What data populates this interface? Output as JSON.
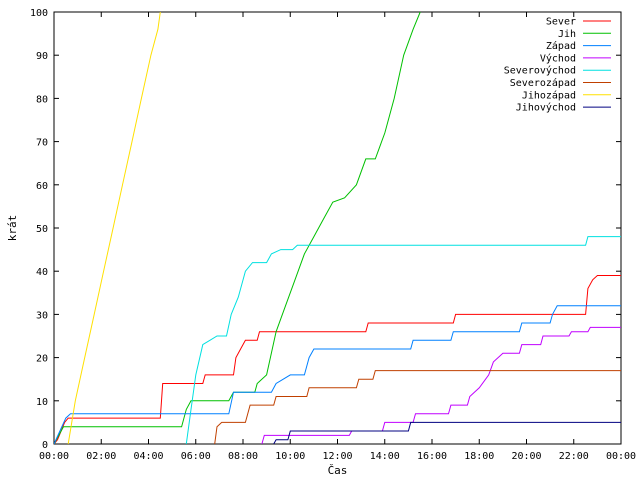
{
  "chart_data": {
    "type": "line",
    "xlabel": "Čas",
    "ylabel": "krát",
    "xlim": [
      0,
      24
    ],
    "ylim": [
      0,
      100
    ],
    "x_ticks": [
      {
        "value": 0,
        "label": "00:00"
      },
      {
        "value": 2,
        "label": "02:00"
      },
      {
        "value": 4,
        "label": "04:00"
      },
      {
        "value": 6,
        "label": "06:00"
      },
      {
        "value": 8,
        "label": "08:00"
      },
      {
        "value": 10,
        "label": "10:00"
      },
      {
        "value": 12,
        "label": "12:00"
      },
      {
        "value": 14,
        "label": "14:00"
      },
      {
        "value": 16,
        "label": "16:00"
      },
      {
        "value": 18,
        "label": "18:00"
      },
      {
        "value": 20,
        "label": "20:00"
      },
      {
        "value": 22,
        "label": "22:00"
      },
      {
        "value": 24,
        "label": "00:00"
      }
    ],
    "y_ticks": [
      0,
      10,
      20,
      30,
      40,
      50,
      60,
      70,
      80,
      90,
      100
    ],
    "grid": false,
    "legend_position": "top-right",
    "series": [
      {
        "name": "Sever",
        "color": "#ff0000",
        "points": [
          [
            0,
            0
          ],
          [
            0.15,
            1
          ],
          [
            0.3,
            3
          ],
          [
            0.45,
            5
          ],
          [
            0.6,
            6
          ],
          [
            4.5,
            6
          ],
          [
            4.6,
            14
          ],
          [
            6.3,
            14
          ],
          [
            6.4,
            16
          ],
          [
            7.6,
            16
          ],
          [
            7.7,
            20
          ],
          [
            7.9,
            22
          ],
          [
            8.1,
            24
          ],
          [
            8.6,
            24
          ],
          [
            8.7,
            26
          ],
          [
            13.2,
            26
          ],
          [
            13.3,
            28
          ],
          [
            16.9,
            28
          ],
          [
            17.0,
            30
          ],
          [
            22.5,
            30
          ],
          [
            22.6,
            36
          ],
          [
            22.8,
            38
          ],
          [
            23.0,
            39
          ],
          [
            24,
            39
          ]
        ]
      },
      {
        "name": "Jih",
        "color": "#00c000",
        "points": [
          [
            0,
            0
          ],
          [
            0.2,
            2
          ],
          [
            0.4,
            4
          ],
          [
            5.4,
            4
          ],
          [
            5.6,
            8
          ],
          [
            5.8,
            10
          ],
          [
            7.4,
            10
          ],
          [
            7.6,
            12
          ],
          [
            8.5,
            12
          ],
          [
            8.6,
            14
          ],
          [
            9.0,
            16
          ],
          [
            9.4,
            26
          ],
          [
            9.8,
            32
          ],
          [
            10.2,
            38
          ],
          [
            10.6,
            44
          ],
          [
            11.0,
            48
          ],
          [
            11.4,
            52
          ],
          [
            11.8,
            56
          ],
          [
            12.3,
            57
          ],
          [
            12.8,
            60
          ],
          [
            13.2,
            66
          ],
          [
            13.6,
            66
          ],
          [
            14.0,
            72
          ],
          [
            14.4,
            80
          ],
          [
            14.8,
            90
          ],
          [
            15.2,
            96
          ],
          [
            15.5,
            100
          ]
        ]
      },
      {
        "name": "Západ",
        "color": "#0080ff",
        "points": [
          [
            0,
            0
          ],
          [
            0.5,
            6
          ],
          [
            0.7,
            7
          ],
          [
            7.4,
            7
          ],
          [
            7.6,
            12
          ],
          [
            9.2,
            12
          ],
          [
            9.4,
            14
          ],
          [
            10,
            16
          ],
          [
            10.6,
            16
          ],
          [
            10.8,
            20
          ],
          [
            11,
            22
          ],
          [
            15.1,
            22
          ],
          [
            15.2,
            24
          ],
          [
            16.8,
            24
          ],
          [
            16.9,
            26
          ],
          [
            19.7,
            26
          ],
          [
            19.8,
            28
          ],
          [
            21.0,
            28
          ],
          [
            21.1,
            30
          ],
          [
            21.3,
            32
          ],
          [
            24,
            32
          ]
        ]
      },
      {
        "name": "Východ",
        "color": "#c000ff",
        "points": [
          [
            8.8,
            0
          ],
          [
            8.9,
            2
          ],
          [
            12.5,
            2
          ],
          [
            12.6,
            3
          ],
          [
            13.9,
            3
          ],
          [
            14.0,
            5
          ],
          [
            15.2,
            5
          ],
          [
            15.3,
            7
          ],
          [
            16.7,
            7
          ],
          [
            16.8,
            9
          ],
          [
            17.5,
            9
          ],
          [
            17.6,
            11
          ],
          [
            18.0,
            13
          ],
          [
            18.4,
            16
          ],
          [
            18.6,
            19
          ],
          [
            19.0,
            21
          ],
          [
            19.7,
            21
          ],
          [
            19.8,
            23
          ],
          [
            20.6,
            23
          ],
          [
            20.7,
            25
          ],
          [
            21.8,
            25
          ],
          [
            21.9,
            26
          ],
          [
            22.6,
            26
          ],
          [
            22.7,
            27
          ],
          [
            24,
            27
          ]
        ]
      },
      {
        "name": "Severovýchod",
        "color": "#00e0e0",
        "points": [
          [
            5.6,
            0
          ],
          [
            5.8,
            8
          ],
          [
            6.0,
            16
          ],
          [
            6.3,
            23
          ],
          [
            6.6,
            24
          ],
          [
            6.9,
            25
          ],
          [
            7.3,
            25
          ],
          [
            7.5,
            30
          ],
          [
            7.8,
            34
          ],
          [
            8.1,
            40
          ],
          [
            8.4,
            42
          ],
          [
            9.0,
            42
          ],
          [
            9.2,
            44
          ],
          [
            9.6,
            45
          ],
          [
            10.1,
            45
          ],
          [
            10.3,
            46
          ],
          [
            22.5,
            46
          ],
          [
            22.6,
            48
          ],
          [
            24,
            48
          ]
        ]
      },
      {
        "name": "Severozápad",
        "color": "#c04000",
        "points": [
          [
            6.8,
            0
          ],
          [
            6.9,
            4
          ],
          [
            7.1,
            5
          ],
          [
            8.1,
            5
          ],
          [
            8.3,
            9
          ],
          [
            9.3,
            9
          ],
          [
            9.4,
            11
          ],
          [
            10.7,
            11
          ],
          [
            10.8,
            13
          ],
          [
            12.8,
            13
          ],
          [
            12.9,
            15
          ],
          [
            13.5,
            15
          ],
          [
            13.6,
            17
          ],
          [
            24,
            17
          ]
        ]
      },
      {
        "name": "Jihozápad",
        "color": "#ffe000",
        "points": [
          [
            0.6,
            0
          ],
          [
            0.9,
            10
          ],
          [
            1.3,
            20
          ],
          [
            1.7,
            30
          ],
          [
            2.1,
            40
          ],
          [
            2.5,
            50
          ],
          [
            2.9,
            60
          ],
          [
            3.3,
            70
          ],
          [
            3.7,
            80
          ],
          [
            4.1,
            90
          ],
          [
            4.4,
            96
          ],
          [
            4.5,
            100
          ]
        ]
      },
      {
        "name": "Jihovýchod",
        "color": "#000080",
        "points": [
          [
            9.3,
            0
          ],
          [
            9.4,
            1
          ],
          [
            9.9,
            1
          ],
          [
            10.0,
            3
          ],
          [
            15.0,
            3
          ],
          [
            15.1,
            5
          ],
          [
            24,
            5
          ]
        ]
      }
    ]
  }
}
